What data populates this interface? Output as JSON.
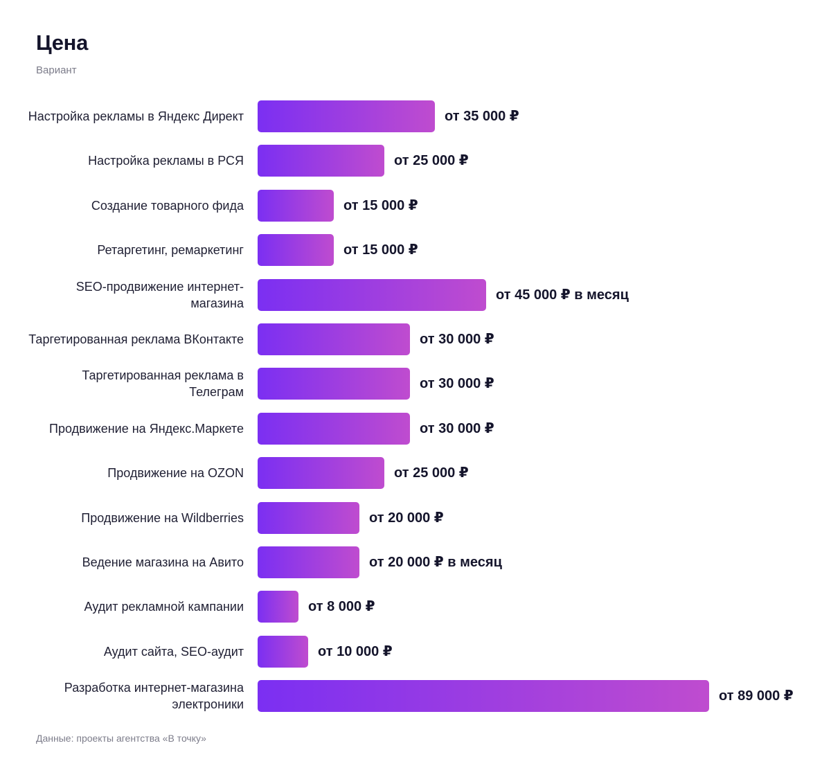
{
  "chart_data": {
    "type": "bar",
    "orientation": "horizontal",
    "title": "Цена",
    "subtitle": "Вариант",
    "source": "Данные: проекты агентства «В точку»",
    "xlim": [
      0,
      89000
    ],
    "grid": false,
    "legend": "none",
    "colors": {
      "bar_start": "#7b2ff2",
      "bar_end": "#bf4ccf"
    },
    "categories": [
      "Настройка рекламы в Яндекс Директ",
      "Настройка рекламы в РСЯ",
      "Создание товарного фида",
      "Ретаргетинг, ремаркетинг",
      "SEO-продвижение интернет-магазина",
      "Таргетированная реклама ВКонтакте",
      "Таргетированная реклама в Телеграм",
      "Продвижение на Яндекс.Маркете",
      "Продвижение на OZON",
      "Продвижение на Wildberries",
      "Ведение магазина на Авито",
      "Аудит рекламной кампании",
      "Аудит сайта, SEO-аудит",
      "Разработка интернет-магазина электроники"
    ],
    "values": [
      35000,
      25000,
      15000,
      15000,
      45000,
      30000,
      30000,
      30000,
      25000,
      20000,
      20000,
      8000,
      10000,
      89000
    ],
    "value_labels": [
      "от 35 000 ₽",
      "от 25 000 ₽",
      "от 15 000 ₽",
      "от 15 000 ₽",
      "от 45 000 ₽ в месяц",
      "от 30 000 ₽",
      "от 30 000 ₽",
      "от 30 000 ₽",
      "от 25 000 ₽",
      "от 20 000 ₽",
      "от 20 000 ₽ в месяц",
      "от 8 000 ₽",
      "от 10 000 ₽",
      "от 89 000 ₽"
    ]
  }
}
